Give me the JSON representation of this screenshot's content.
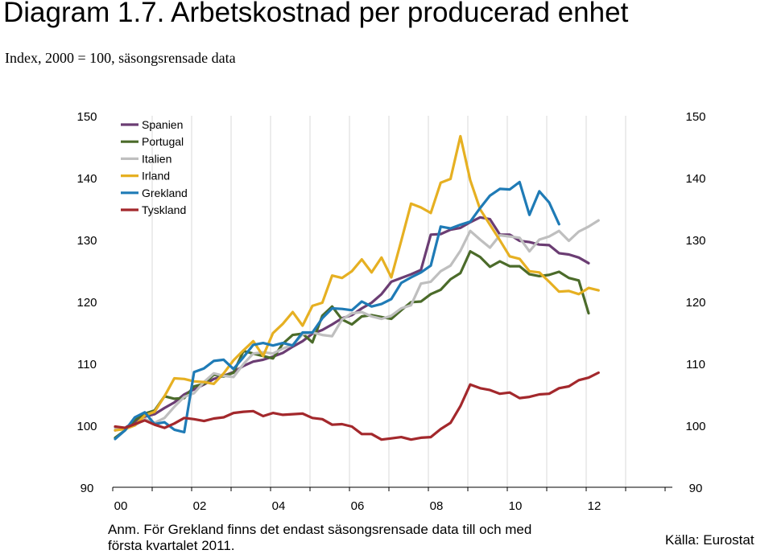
{
  "title": "Diagram 1.7. Arbetskostnad per producerad enhet",
  "subtitle": "Index, 2000 = 100, säsongsrensade data",
  "note": "Anm. För Grekland finns det endast säsongsrensade data till och med första kvartalet 2011.",
  "source": "Källa: Eurostat",
  "chart_data": {
    "type": "line",
    "ylim": [
      90,
      150
    ],
    "y_ticks": [
      "90",
      "100",
      "110",
      "120",
      "130",
      "140",
      "150"
    ],
    "x_tick_labels": [
      "00",
      "02",
      "04",
      "06",
      "08",
      "10",
      "12"
    ],
    "legend_position": "top-left",
    "grid": "vertical gridlines",
    "series": [
      {
        "name": "Spanien",
        "color": "#6b3d73",
        "values": [
          99.2,
          99.6,
          100.6,
          101.4,
          101.8,
          102.8,
          103.7,
          105.0,
          105.8,
          106.6,
          107.5,
          108.0,
          108.6,
          109.6,
          110.3,
          110.6,
          111.1,
          111.7,
          112.7,
          113.6,
          114.8,
          115.4,
          116.3,
          117.3,
          117.8,
          118.9,
          119.8,
          121.2,
          123.2,
          123.8,
          124.4,
          125.1,
          130.8,
          130.9,
          131.6,
          131.9,
          132.8,
          133.6,
          133.3,
          130.8,
          130.8,
          129.8,
          129.6,
          129.2,
          129.1,
          127.8,
          127.6,
          127.1,
          126.2
        ]
      },
      {
        "name": "Portugal",
        "color": "#4b6b2a",
        "values": [
          98.0,
          99.2,
          100.9,
          101.9,
          102.4,
          104.7,
          104.3,
          104.4,
          106.3,
          106.7,
          108.2,
          107.9,
          108.5,
          112.0,
          111.6,
          111.2,
          110.8,
          113.2,
          114.6,
          114.8,
          113.4,
          117.7,
          119.2,
          117.1,
          116.3,
          117.6,
          117.8,
          117.5,
          117.2,
          118.6,
          119.9,
          120.0,
          121.2,
          121.9,
          123.6,
          124.6,
          128.1,
          127.2,
          125.6,
          126.5,
          125.7,
          125.7,
          124.4,
          124.1,
          124.3,
          124.8,
          123.8,
          123.4,
          118.1
        ]
      },
      {
        "name": "Italien",
        "color": "#bfbfbf",
        "values": [
          99.6,
          99.6,
          100.0,
          101.0,
          100.4,
          101.2,
          103.0,
          104.6,
          105.2,
          107.0,
          108.4,
          108.0,
          107.8,
          109.9,
          111.6,
          111.8,
          111.6,
          112.4,
          113.0,
          114.7,
          115.0,
          114.6,
          114.4,
          117.1,
          118.1,
          118.3,
          117.6,
          117.2,
          117.7,
          118.9,
          119.4,
          122.9,
          123.2,
          124.9,
          125.8,
          128.2,
          131.4,
          130.0,
          128.7,
          130.7,
          130.5,
          130.3,
          128.1,
          130.0,
          130.5,
          131.4,
          129.8,
          131.3,
          132.1,
          133.1
        ]
      },
      {
        "name": "Irland",
        "color": "#e6b022",
        "values": [
          99.2,
          99.4,
          100.0,
          101.6,
          102.2,
          104.7,
          107.6,
          107.5,
          107.1,
          107.0,
          106.7,
          108.4,
          110.5,
          112.1,
          113.6,
          111.2,
          114.9,
          116.4,
          118.3,
          116.1,
          119.3,
          119.8,
          124.2,
          123.8,
          124.9,
          126.8,
          124.7,
          127.1,
          123.9,
          129.8,
          135.8,
          135.2,
          134.3,
          139.2,
          139.8,
          146.7,
          139.6,
          134.9,
          132.4,
          129.9,
          127.3,
          126.9,
          124.9,
          124.7,
          123.2,
          121.6,
          121.7,
          121.2,
          122.2,
          121.8
        ]
      },
      {
        "name": "Grekland",
        "color": "#1f7bb6",
        "values": [
          97.8,
          99.2,
          101.3,
          102.1,
          100.2,
          100.5,
          99.3,
          98.9,
          108.6,
          109.2,
          110.4,
          110.6,
          109.1,
          111.0,
          113.0,
          113.3,
          112.9,
          113.3,
          112.9,
          115.0,
          115.0,
          117.3,
          118.9,
          118.8,
          118.6,
          120.0,
          119.2,
          119.6,
          120.4,
          123.0,
          123.9,
          124.7,
          125.8,
          132.1,
          131.8,
          132.4,
          132.9,
          135.1,
          137.1,
          138.2,
          138.1,
          139.3,
          134.0,
          137.8,
          136.0,
          132.5
        ]
      },
      {
        "name": "Tyskland",
        "color": "#a3282c",
        "values": [
          99.8,
          99.6,
          100.2,
          100.8,
          100.1,
          99.6,
          100.3,
          101.2,
          101.0,
          100.7,
          101.1,
          101.3,
          102.0,
          102.2,
          102.3,
          101.5,
          102.0,
          101.7,
          101.8,
          101.9,
          101.2,
          101.0,
          100.1,
          100.2,
          99.8,
          98.6,
          98.6,
          97.7,
          97.9,
          98.1,
          97.7,
          98.0,
          98.1,
          99.4,
          100.4,
          103.1,
          106.6,
          106.0,
          105.7,
          105.1,
          105.3,
          104.4,
          104.6,
          105.0,
          105.1,
          106.0,
          106.3,
          107.3,
          107.7,
          108.5
        ]
      }
    ]
  }
}
